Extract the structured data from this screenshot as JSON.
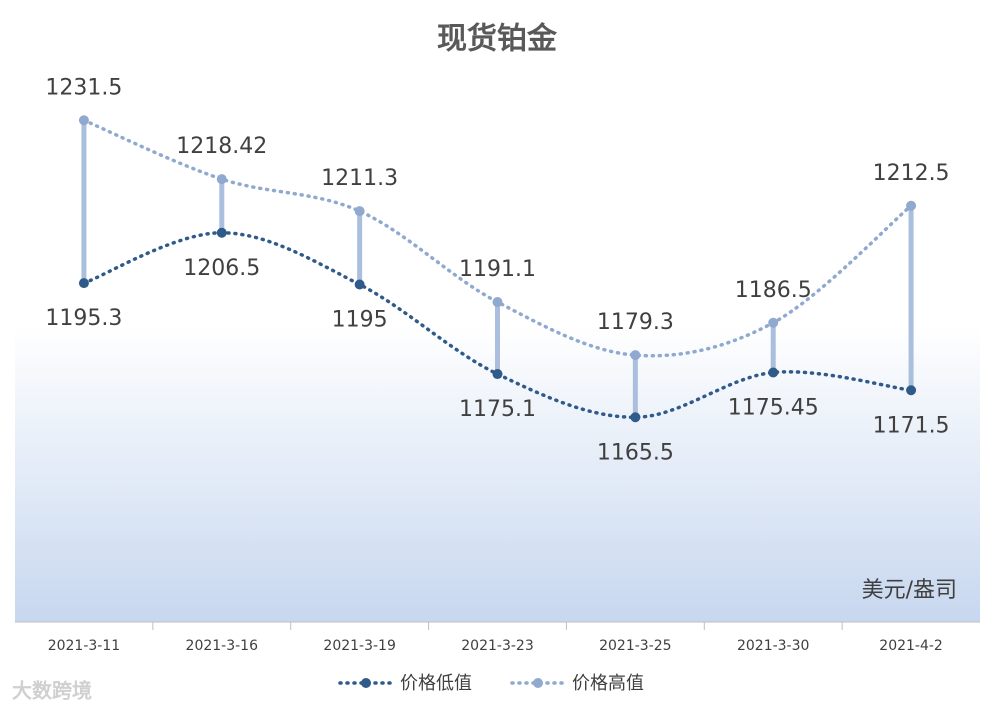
{
  "chart_data": {
    "type": "line",
    "title": "现货铂金",
    "unit": "美元/盎司",
    "watermark": "大数跨境",
    "categories": [
      "2021-3-11",
      "2021-3-16",
      "2021-3-19",
      "2021-3-23",
      "2021-3-25",
      "2021-3-30",
      "2021-4-2"
    ],
    "series": [
      {
        "name": "价格低值",
        "color": "#2f5a8a",
        "values": [
          1195.3,
          1206.5,
          1195,
          1175.1,
          1165.5,
          1175.45,
          1171.5
        ]
      },
      {
        "name": "价格高值",
        "color": "#8fa9cf",
        "values": [
          1231.5,
          1218.42,
          1211.3,
          1191.1,
          1179.3,
          1186.5,
          1212.5
        ]
      }
    ],
    "ylim": [
      1120,
      1240
    ],
    "high_low_lines": true,
    "legend": "bottom"
  }
}
